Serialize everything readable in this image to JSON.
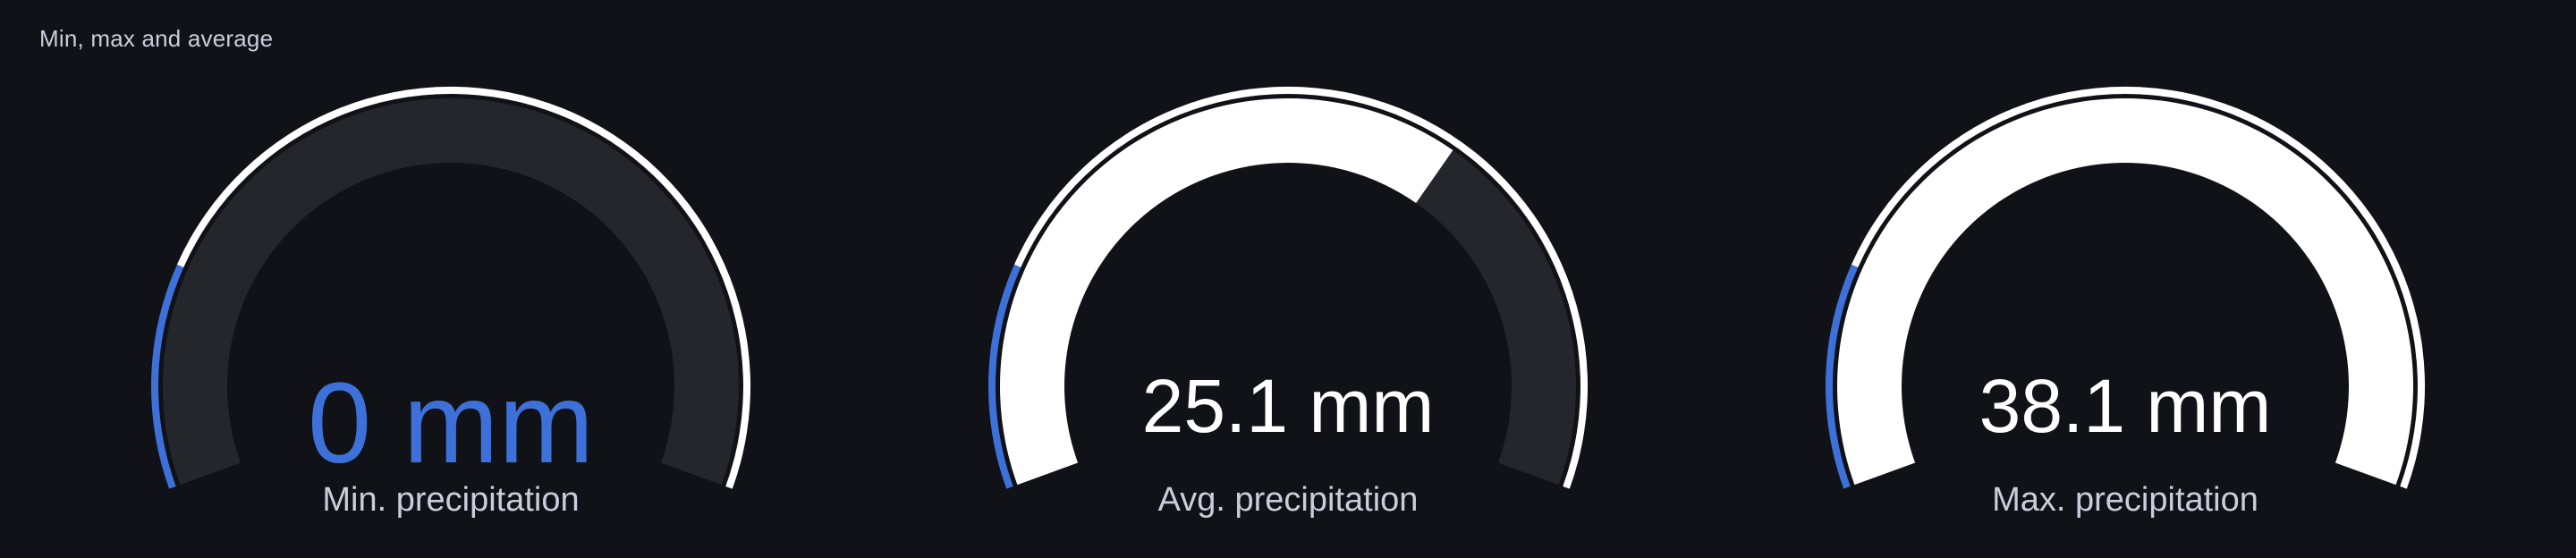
{
  "panel": {
    "title": "Min, max and average"
  },
  "gauges": [
    {
      "value_text": "0 mm",
      "label": "Min. precipitation",
      "value": 0,
      "max": 38.1,
      "value_color": "#3d71d9"
    },
    {
      "value_text": "25.1 mm",
      "label": "Avg. precipitation",
      "value": 25.1,
      "max": 38.1,
      "value_color": "#ffffff"
    },
    {
      "value_text": "38.1 mm",
      "label": "Max. precipitation",
      "value": 38.1,
      "max": 38.1,
      "value_color": "#ffffff"
    }
  ],
  "colors": {
    "background": "#111217",
    "track": "#25262b",
    "fill": "#ffffff",
    "threshold_base": "#3d71d9",
    "threshold_high": "#ffffff"
  }
}
